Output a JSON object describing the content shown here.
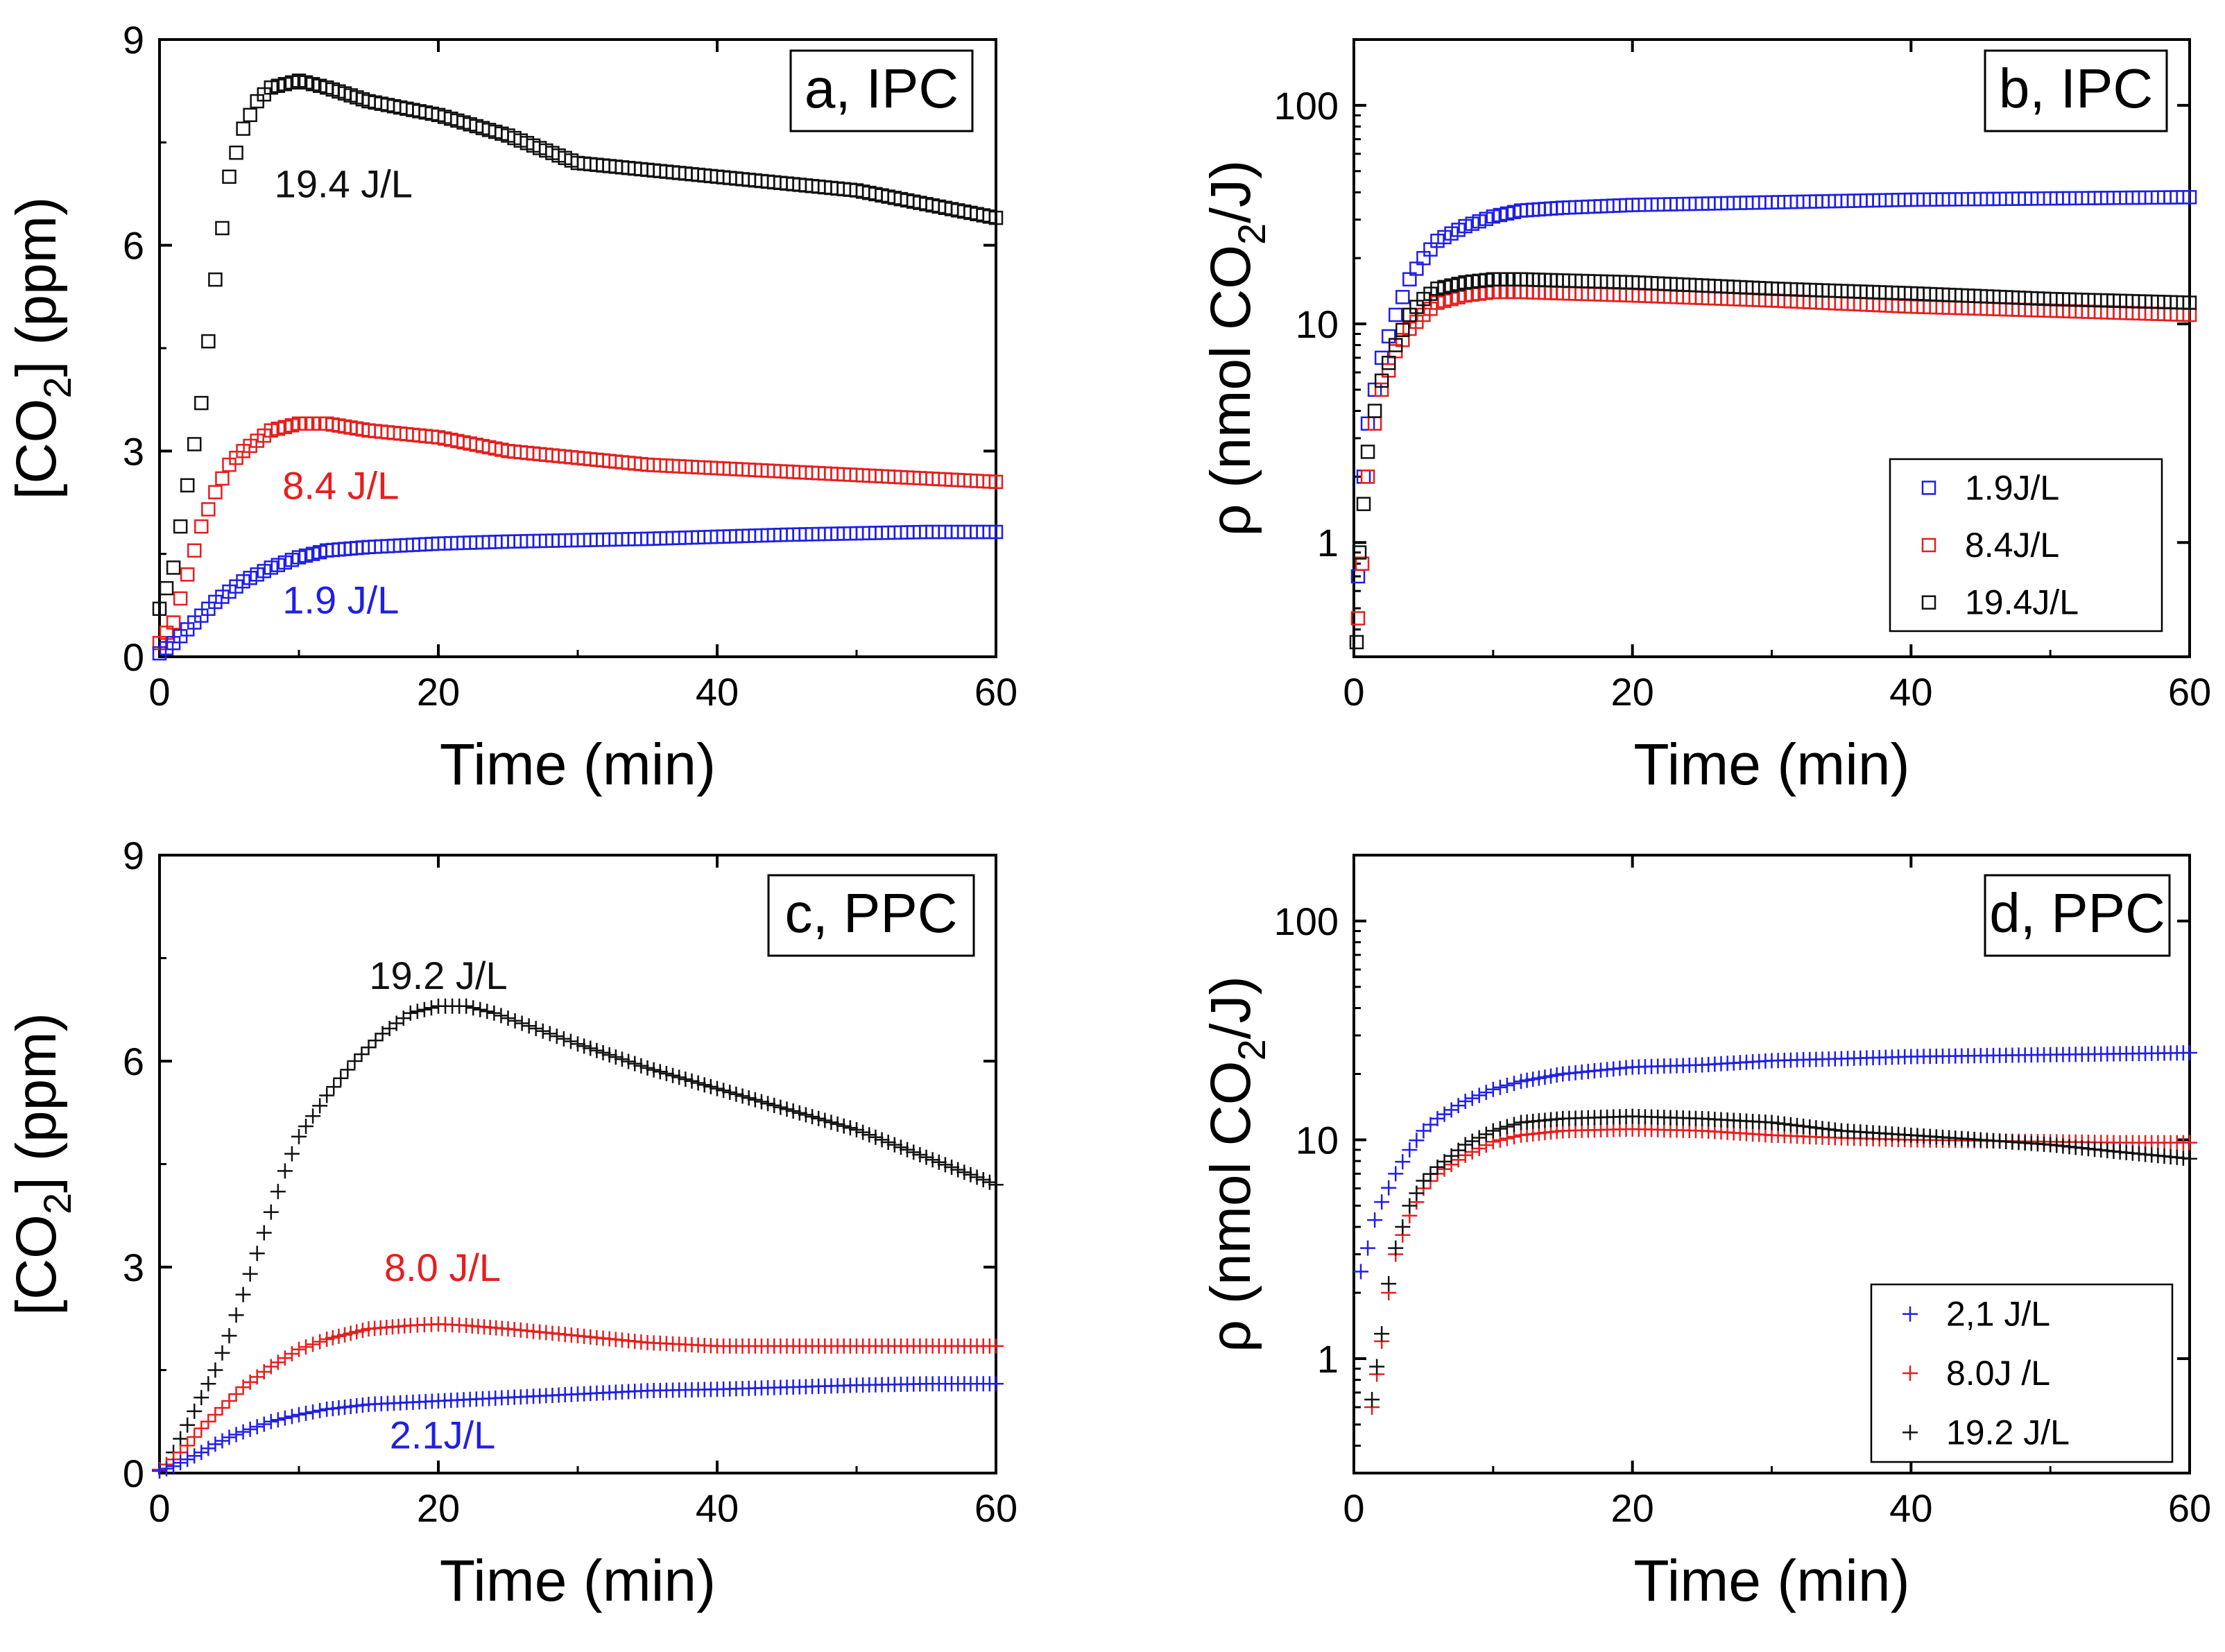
{
  "figure": {
    "description_panels": [
      "a, IPC",
      "b, IPC",
      "c, PPC",
      "d, PPC"
    ]
  },
  "colors": {
    "blue": "#1f1fe6",
    "red": "#e61e1e",
    "black": "#111111",
    "axis": "#000000"
  },
  "chart_data": [
    {
      "type": "scatter",
      "panel_label": "a, IPC",
      "title": "",
      "xlabel": "Time (min)",
      "ylabel_parts": [
        "[CO",
        "2",
        "] (ppm)"
      ],
      "scale": "linear",
      "xlim": [
        0,
        60
      ],
      "ylim": [
        0,
        9
      ],
      "xticks": [
        0,
        20,
        40,
        60
      ],
      "yticks": [
        0,
        3,
        6,
        9
      ],
      "marker": "square",
      "annotations": [
        {
          "text": "19.4 J/L",
          "color": "black",
          "x": 13.2,
          "y": 6.7
        },
        {
          "text": "8.4 J/L",
          "color": "red",
          "x": 13.0,
          "y": 2.3
        },
        {
          "text": "1.9 J/L",
          "color": "blue",
          "x": 13.0,
          "y": 0.63
        }
      ],
      "series": [
        {
          "name": "19.4 J/L",
          "color": "black",
          "x": [
            0,
            1,
            2,
            3,
            4,
            5,
            6,
            7,
            8,
            10,
            12,
            15,
            20,
            25,
            30,
            35,
            40,
            45,
            50,
            55,
            60
          ],
          "y": [
            0.7,
            1.3,
            2.5,
            3.7,
            5.5,
            7.0,
            7.7,
            8.1,
            8.3,
            8.4,
            8.3,
            8.1,
            7.9,
            7.6,
            7.2,
            7.1,
            7.0,
            6.9,
            6.8,
            6.6,
            6.4
          ]
        },
        {
          "name": "8.4 J/L",
          "color": "red",
          "x": [
            0,
            1,
            2,
            3,
            4,
            5,
            6,
            8,
            10,
            12,
            15,
            20,
            25,
            30,
            35,
            40,
            45,
            50,
            55,
            60
          ],
          "y": [
            0.2,
            0.5,
            1.2,
            1.9,
            2.4,
            2.8,
            3.0,
            3.3,
            3.4,
            3.4,
            3.3,
            3.2,
            3.0,
            2.9,
            2.8,
            2.75,
            2.7,
            2.65,
            2.6,
            2.55
          ]
        },
        {
          "name": "1.9 J/L",
          "color": "blue",
          "x": [
            0,
            1,
            2,
            3,
            4,
            5,
            6,
            8,
            10,
            12,
            15,
            20,
            25,
            30,
            35,
            40,
            45,
            50,
            55,
            60
          ],
          "y": [
            0.05,
            0.2,
            0.4,
            0.6,
            0.8,
            0.95,
            1.1,
            1.3,
            1.45,
            1.55,
            1.6,
            1.65,
            1.68,
            1.7,
            1.72,
            1.75,
            1.78,
            1.8,
            1.82,
            1.82
          ]
        }
      ]
    },
    {
      "type": "scatter",
      "panel_label": "b, IPC",
      "title": "",
      "xlabel": "Time (min)",
      "ylabel_parts": [
        "ρ (nmol CO",
        "2",
        "/J)"
      ],
      "scale": "log",
      "xlim": [
        0,
        60
      ],
      "ylim": [
        0.3,
        200
      ],
      "xticks": [
        0,
        20,
        40,
        60
      ],
      "yticks": [
        1,
        10,
        100
      ],
      "marker": "square",
      "legend": {
        "position": "center-right",
        "entries": [
          {
            "label": "1.9J/L",
            "color": "blue"
          },
          {
            "label": "8.4J/L",
            "color": "red"
          },
          {
            "label": "19.4J/L",
            "color": "black"
          }
        ]
      },
      "series": [
        {
          "name": "1.9J/L",
          "color": "blue",
          "x": [
            0.3,
            0.7,
            1,
            1.5,
            2,
            3,
            4,
            5,
            6,
            8,
            10,
            12,
            15,
            20,
            30,
            40,
            50,
            60
          ],
          "y": [
            0.7,
            2.0,
            3.5,
            5.0,
            7.0,
            11,
            16,
            20,
            24,
            28,
            31,
            33,
            34,
            35,
            36,
            37,
            37.5,
            38
          ]
        },
        {
          "name": "8.4J/L",
          "color": "red",
          "x": [
            0.3,
            0.6,
            1,
            1.5,
            2,
            3,
            4,
            5,
            6,
            8,
            10,
            12,
            15,
            20,
            30,
            40,
            50,
            60
          ],
          "y": [
            0.45,
            0.8,
            2.0,
            3.5,
            5.0,
            7.5,
            9.5,
            11,
            12.5,
            13.5,
            14,
            14,
            13.8,
            13.5,
            12.8,
            12,
            11.5,
            11
          ]
        },
        {
          "name": "19.4J/L",
          "color": "black",
          "x": [
            0.2,
            0.4,
            0.7,
            1,
            1.5,
            2,
            3,
            4,
            5,
            6,
            8,
            10,
            12,
            15,
            20,
            30,
            40,
            50,
            60
          ],
          "y": [
            0.35,
            0.9,
            1.5,
            2.6,
            4.0,
            5.5,
            8.0,
            11,
            13,
            14.5,
            15.5,
            16,
            16,
            15.8,
            15.5,
            14.5,
            13.8,
            13,
            12.5
          ]
        }
      ]
    },
    {
      "type": "scatter",
      "panel_label": "c, PPC",
      "title": "",
      "xlabel": "Time (min)",
      "ylabel_parts": [
        "[CO",
        "2",
        "] (ppm)"
      ],
      "scale": "linear",
      "xlim": [
        0,
        60
      ],
      "ylim": [
        0,
        9
      ],
      "xticks": [
        0,
        20,
        40,
        60
      ],
      "yticks": [
        0,
        3,
        6,
        9
      ],
      "marker": "plus",
      "annotations": [
        {
          "text": "19.2 J/L",
          "color": "black",
          "x": 20.0,
          "y": 7.05
        },
        {
          "text": "8.0 J/L",
          "color": "red",
          "x": 20.3,
          "y": 2.8
        },
        {
          "text": "2.1J/L",
          "color": "blue",
          "x": 20.3,
          "y": 0.36
        }
      ],
      "series": [
        {
          "name": "19.2 J/L",
          "color": "black",
          "x": [
            1,
            2,
            3,
            4,
            5,
            6,
            7,
            8,
            9,
            10,
            12,
            14,
            16,
            18,
            20,
            22,
            24,
            26,
            28,
            30,
            35,
            40,
            45,
            50,
            55,
            60
          ],
          "y": [
            0.3,
            0.7,
            1.1,
            1.5,
            2.0,
            2.6,
            3.2,
            3.8,
            4.4,
            4.9,
            5.5,
            6.0,
            6.4,
            6.7,
            6.8,
            6.8,
            6.7,
            6.55,
            6.4,
            6.25,
            5.9,
            5.6,
            5.3,
            5.0,
            4.6,
            4.2
          ]
        },
        {
          "name": "8.0 J/L",
          "color": "red",
          "x": [
            0,
            1,
            2,
            3,
            4,
            5,
            6,
            8,
            10,
            12,
            15,
            18,
            20,
            22,
            25,
            30,
            35,
            40,
            45,
            50,
            55,
            60
          ],
          "y": [
            0.05,
            0.2,
            0.4,
            0.65,
            0.85,
            1.05,
            1.25,
            1.55,
            1.8,
            1.95,
            2.1,
            2.15,
            2.17,
            2.15,
            2.1,
            2.0,
            1.9,
            1.85,
            1.85,
            1.85,
            1.85,
            1.85
          ]
        },
        {
          "name": "2.1J/L",
          "color": "blue",
          "x": [
            0,
            1,
            2,
            3,
            4,
            5,
            6,
            8,
            10,
            12,
            15,
            20,
            25,
            30,
            35,
            40,
            45,
            50,
            55,
            60
          ],
          "y": [
            0.03,
            0.1,
            0.2,
            0.3,
            0.42,
            0.52,
            0.6,
            0.75,
            0.85,
            0.93,
            1.0,
            1.05,
            1.1,
            1.15,
            1.2,
            1.22,
            1.25,
            1.28,
            1.3,
            1.3
          ]
        }
      ]
    },
    {
      "type": "scatter",
      "panel_label": "d, PPC",
      "title": "",
      "xlabel": "Time (min)",
      "ylabel_parts": [
        "ρ (nmol CO",
        "2",
        "/J)"
      ],
      "scale": "log",
      "xlim": [
        0,
        60
      ],
      "ylim": [
        0.3,
        200
      ],
      "xticks": [
        0,
        20,
        40,
        60
      ],
      "yticks": [
        1,
        10,
        100
      ],
      "marker": "plus",
      "legend": {
        "position": "lower-right",
        "entries": [
          {
            "label": "2,1 J/L",
            "color": "blue"
          },
          {
            "label": "8.0J /L",
            "color": "red"
          },
          {
            "label": "19.2 J/L",
            "color": "black"
          }
        ]
      },
      "series": [
        {
          "name": "2,1 J/L",
          "color": "blue",
          "x": [
            0.5,
            1,
            1.5,
            2,
            3,
            4,
            5,
            6,
            8,
            10,
            12,
            15,
            20,
            25,
            30,
            40,
            50,
            60
          ],
          "y": [
            2.5,
            3.2,
            4.3,
            5.2,
            7.0,
            9.0,
            11,
            12.5,
            15,
            17,
            18.5,
            20,
            21.5,
            22,
            23,
            24,
            24.5,
            25
          ]
        },
        {
          "name": "8.0J /L",
          "color": "red",
          "x": [
            1.3,
            2,
            2.5,
            3,
            4,
            5,
            6,
            8,
            10,
            12,
            15,
            20,
            25,
            30,
            35,
            40,
            45,
            50,
            55,
            60
          ],
          "y": [
            0.6,
            1.2,
            2.0,
            3.0,
            4.5,
            6.0,
            7.0,
            8.5,
            9.8,
            10.5,
            11,
            11.2,
            11,
            10.5,
            10.2,
            10,
            9.9,
            9.8,
            9.7,
            9.7
          ]
        },
        {
          "name": "19.2 J/L",
          "color": "black",
          "x": [
            1.3,
            2,
            2.5,
            3,
            4,
            5,
            6,
            8,
            10,
            12,
            15,
            20,
            25,
            30,
            35,
            40,
            45,
            50,
            55,
            60
          ],
          "y": [
            0.65,
            1.3,
            2.2,
            3.2,
            5.0,
            6.5,
            7.5,
            9.5,
            11,
            12,
            12.5,
            12.8,
            12.5,
            12,
            11,
            10.5,
            10,
            9.5,
            8.8,
            8.2
          ]
        }
      ]
    }
  ]
}
